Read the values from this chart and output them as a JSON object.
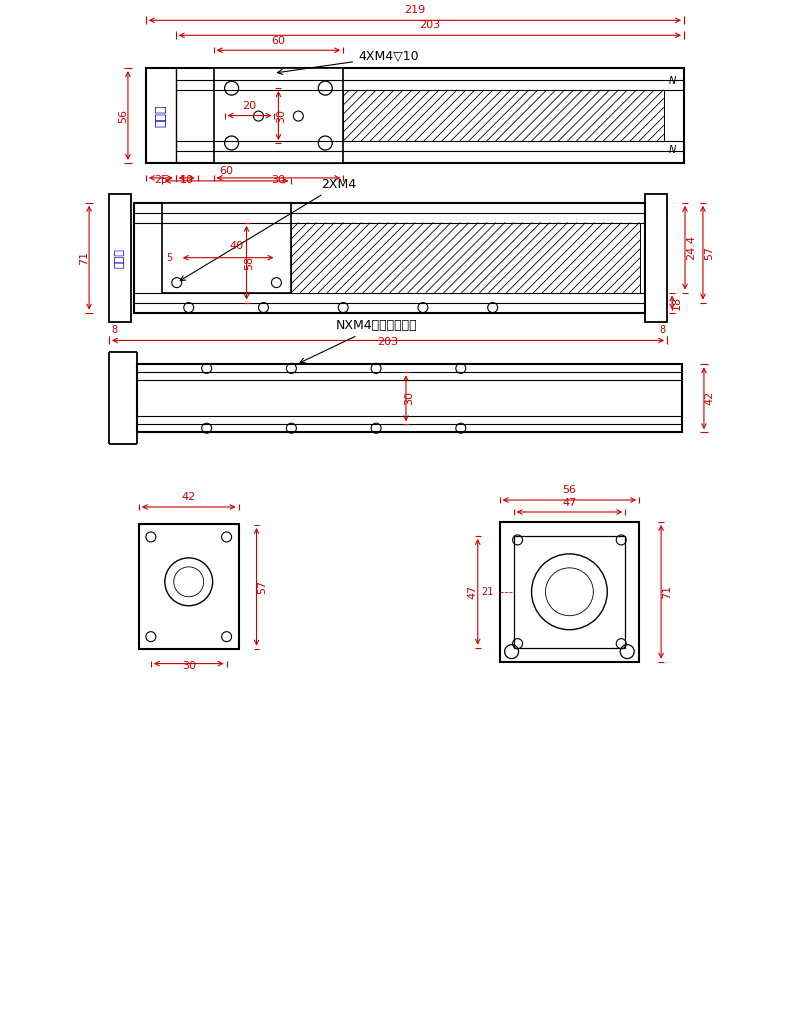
{
  "bg_color": "#ffffff",
  "line_color": "#000000",
  "dim_color": "#cc0000",
  "text_blue": "#0000cd",
  "fig_width": 8.0,
  "fig_height": 10.22,
  "view1": {
    "dim_219": "219",
    "dim_203": "203",
    "dim_60": "60",
    "dim_56": "56",
    "dim_25": "25",
    "dim_10": "10",
    "dim_30b": "30",
    "dim_20": "20",
    "dim_30a": "30",
    "label_4xm4": "4XM4▽10",
    "label_coupling": "联轴器"
  },
  "view2": {
    "dim_60": "60",
    "dim_71": "71",
    "dim_40": "40",
    "dim_5": "5",
    "dim_203": "203",
    "dim_24_4": "24.4",
    "dim_57": "57",
    "dim_18": "18",
    "dim_58": "58",
    "label_2xm4": "2XM4",
    "label_coupling": "联轴器"
  },
  "view3": {
    "dim_42": "42",
    "dim_30": "30",
    "label_nxm4": "NXM4左右移动螺母"
  },
  "view4": {
    "dim_42w": "42",
    "dim_57h": "57",
    "dim_30": "30"
  },
  "view5": {
    "dim_56w": "56",
    "dim_47": "47",
    "dim_71h": "71",
    "dim_47h": "47"
  }
}
